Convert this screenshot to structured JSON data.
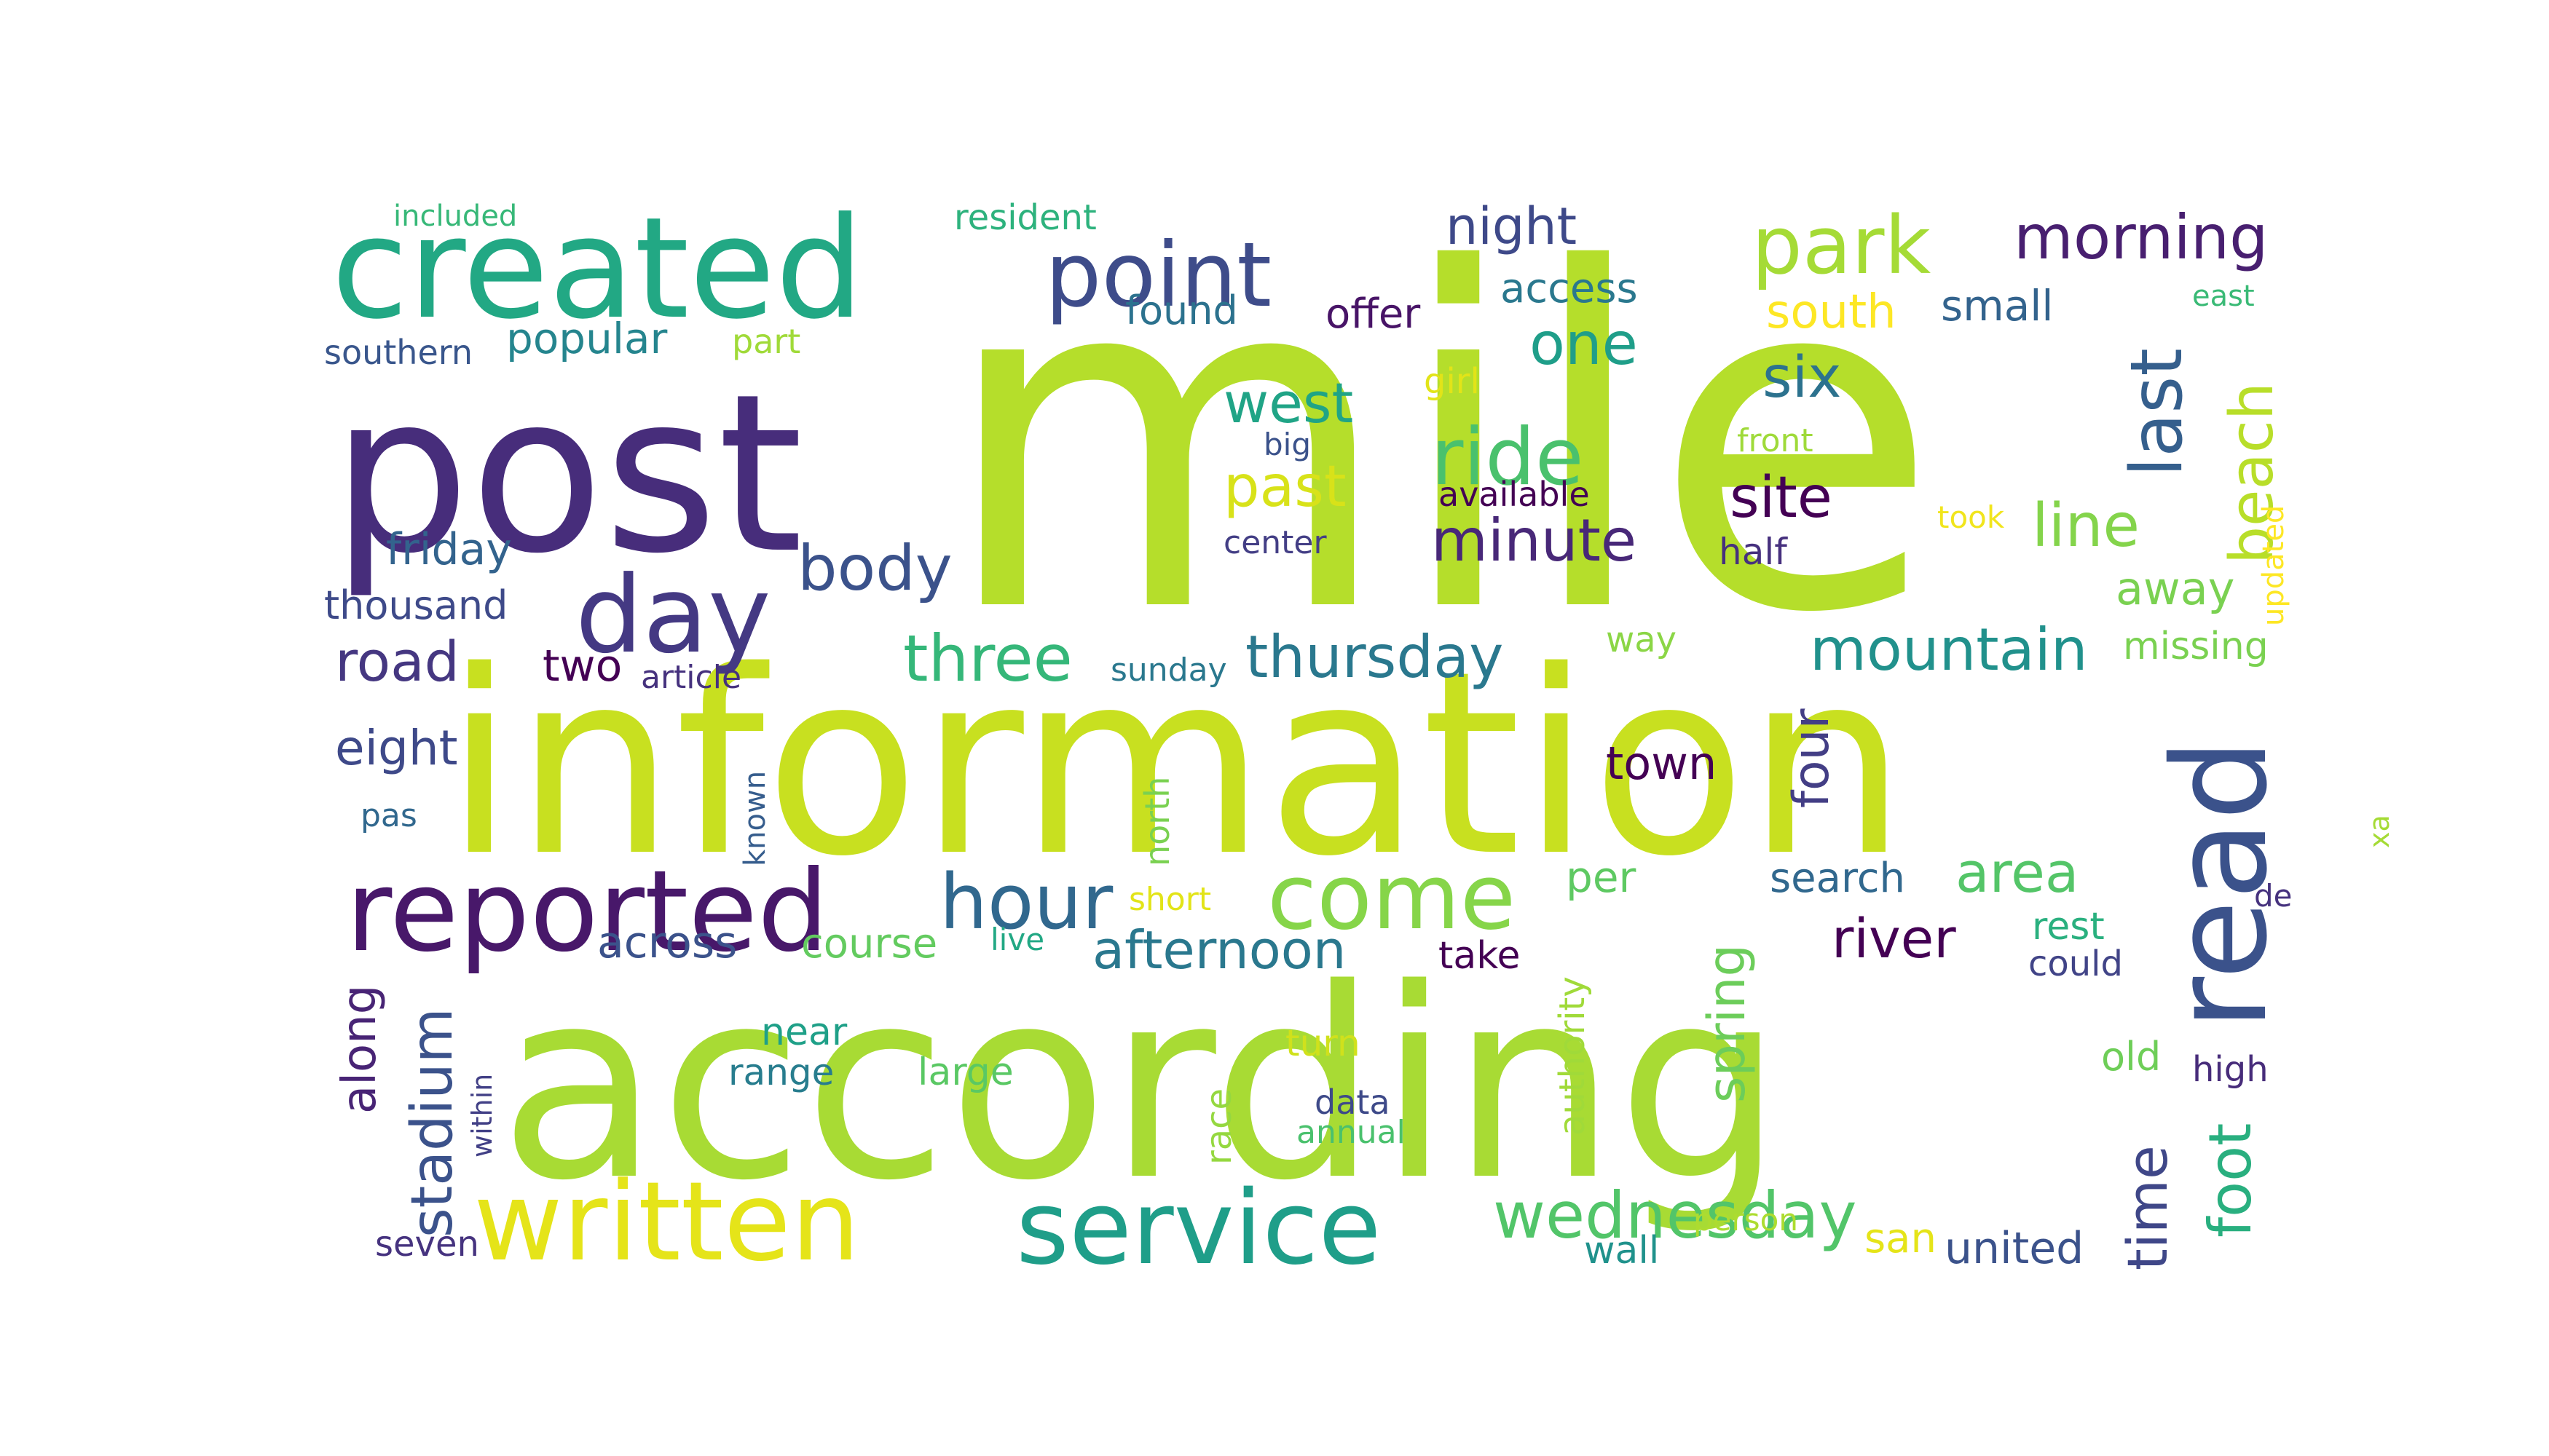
{
  "wordcloud": {
    "colormap": "viridis",
    "words": [
      {
        "text": "mile",
        "color": "#b5de2b"
      },
      {
        "text": "information",
        "color": "#c8e020"
      },
      {
        "text": "according",
        "color": "#a8db34"
      },
      {
        "text": "post",
        "color": "#472d7b"
      },
      {
        "text": "created",
        "color": "#22a884"
      },
      {
        "text": "read",
        "color": "#3b528b"
      },
      {
        "text": "reported",
        "color": "#48186a"
      },
      {
        "text": "written",
        "color": "#e5e419"
      },
      {
        "text": "service",
        "color": "#1f9e89"
      },
      {
        "text": "point",
        "color": "#3e4c8a"
      },
      {
        "text": "day",
        "color": "#443983"
      },
      {
        "text": "come",
        "color": "#86d549"
      },
      {
        "text": "park",
        "color": "#a5db36"
      },
      {
        "text": "ride",
        "color": "#4ac16d"
      },
      {
        "text": "morning",
        "color": "#481f70"
      },
      {
        "text": "hour",
        "color": "#31688e"
      },
      {
        "text": "body",
        "color": "#3b528b"
      },
      {
        "text": "last",
        "color": "#355f8d"
      },
      {
        "text": "beach",
        "color": "#b8de29"
      },
      {
        "text": "line",
        "color": "#84d44b"
      },
      {
        "text": "three",
        "color": "#35b779"
      },
      {
        "text": "thursday",
        "color": "#2a788e"
      },
      {
        "text": "mountain",
        "color": "#21918c"
      },
      {
        "text": "wednesday",
        "color": "#52c569"
      },
      {
        "text": "stadium",
        "color": "#3b528b"
      },
      {
        "text": "minute",
        "color": "#482878"
      },
      {
        "text": "night",
        "color": "#3e4989"
      },
      {
        "text": "one",
        "color": "#1f9e89"
      },
      {
        "text": "west",
        "color": "#20a486"
      },
      {
        "text": "past",
        "color": "#d8e219"
      },
      {
        "text": "site",
        "color": "#440154"
      },
      {
        "text": "six",
        "color": "#2c728e"
      },
      {
        "text": "south",
        "color": "#fde725"
      },
      {
        "text": "small",
        "color": "#33638d"
      },
      {
        "text": "access",
        "color": "#2a788e"
      },
      {
        "text": "offer",
        "color": "#481467"
      },
      {
        "text": "popular",
        "color": "#25858e"
      },
      {
        "text": "found",
        "color": "#2c728e"
      },
      {
        "text": "resident",
        "color": "#2db27d"
      },
      {
        "text": "included",
        "color": "#37b878"
      },
      {
        "text": "southern",
        "color": "#39568c"
      },
      {
        "text": "part",
        "color": "#a0da39"
      },
      {
        "text": "girl",
        "color": "#e2e418"
      },
      {
        "text": "friday",
        "color": "#33638d"
      },
      {
        "text": "thousand",
        "color": "#3e4a89"
      },
      {
        "text": "road",
        "color": "#453781"
      },
      {
        "text": "two",
        "color": "#440154"
      },
      {
        "text": "article",
        "color": "#46327e"
      },
      {
        "text": "eight",
        "color": "#3e4989"
      },
      {
        "text": "pas",
        "color": "#31688e"
      },
      {
        "text": "known",
        "color": "#365d8d"
      },
      {
        "text": "north",
        "color": "#7ad151"
      },
      {
        "text": "sunday",
        "color": "#2a788e"
      },
      {
        "text": "way",
        "color": "#8bd646"
      },
      {
        "text": "town",
        "color": "#440154"
      },
      {
        "text": "four",
        "color": "#433e85"
      },
      {
        "text": "river",
        "color": "#440154"
      },
      {
        "text": "area",
        "color": "#54c568"
      },
      {
        "text": "search",
        "color": "#31688e"
      },
      {
        "text": "per",
        "color": "#5ec962"
      },
      {
        "text": "spring",
        "color": "#6ccd5a"
      },
      {
        "text": "away",
        "color": "#7ad151"
      },
      {
        "text": "missing",
        "color": "#7ad151"
      },
      {
        "text": "updated",
        "color": "#fde725"
      },
      {
        "text": "took",
        "color": "#f1e51d"
      },
      {
        "text": "half",
        "color": "#46307e"
      },
      {
        "text": "front",
        "color": "#9fda3a"
      },
      {
        "text": "big",
        "color": "#3b528b"
      },
      {
        "text": "available",
        "color": "#440154"
      },
      {
        "text": "center",
        "color": "#433e85"
      },
      {
        "text": "east",
        "color": "#3aba76"
      },
      {
        "text": "xa",
        "color": "#a5db36"
      },
      {
        "text": "de",
        "color": "#46327e"
      },
      {
        "text": "rest",
        "color": "#2ab07f"
      },
      {
        "text": "could",
        "color": "#414487"
      },
      {
        "text": "old",
        "color": "#6ece58"
      },
      {
        "text": "high",
        "color": "#472c7a"
      },
      {
        "text": "foot",
        "color": "#29af7f"
      },
      {
        "text": "time",
        "color": "#3f4788"
      },
      {
        "text": "united",
        "color": "#3b528b"
      },
      {
        "text": "san",
        "color": "#e5e419"
      },
      {
        "text": "person",
        "color": "#addc30"
      },
      {
        "text": "wall",
        "color": "#20928c"
      },
      {
        "text": "authority",
        "color": "#a0da39"
      },
      {
        "text": "take",
        "color": "#440154"
      },
      {
        "text": "afternoon",
        "color": "#2a788e"
      },
      {
        "text": "live",
        "color": "#22a884"
      },
      {
        "text": "short",
        "color": "#e2e418"
      },
      {
        "text": "course",
        "color": "#63cb5f"
      },
      {
        "text": "across",
        "color": "#3b528b"
      },
      {
        "text": "near",
        "color": "#1fa088"
      },
      {
        "text": "range",
        "color": "#287d8e"
      },
      {
        "text": "large",
        "color": "#5ac864"
      },
      {
        "text": "turn",
        "color": "#d0e11c"
      },
      {
        "text": "data",
        "color": "#3e4a89"
      },
      {
        "text": "annual",
        "color": "#4ac16d"
      },
      {
        "text": "race",
        "color": "#95d840"
      },
      {
        "text": "within",
        "color": "#424086"
      },
      {
        "text": "along",
        "color": "#482475"
      },
      {
        "text": "seven",
        "color": "#46337f"
      }
    ]
  }
}
